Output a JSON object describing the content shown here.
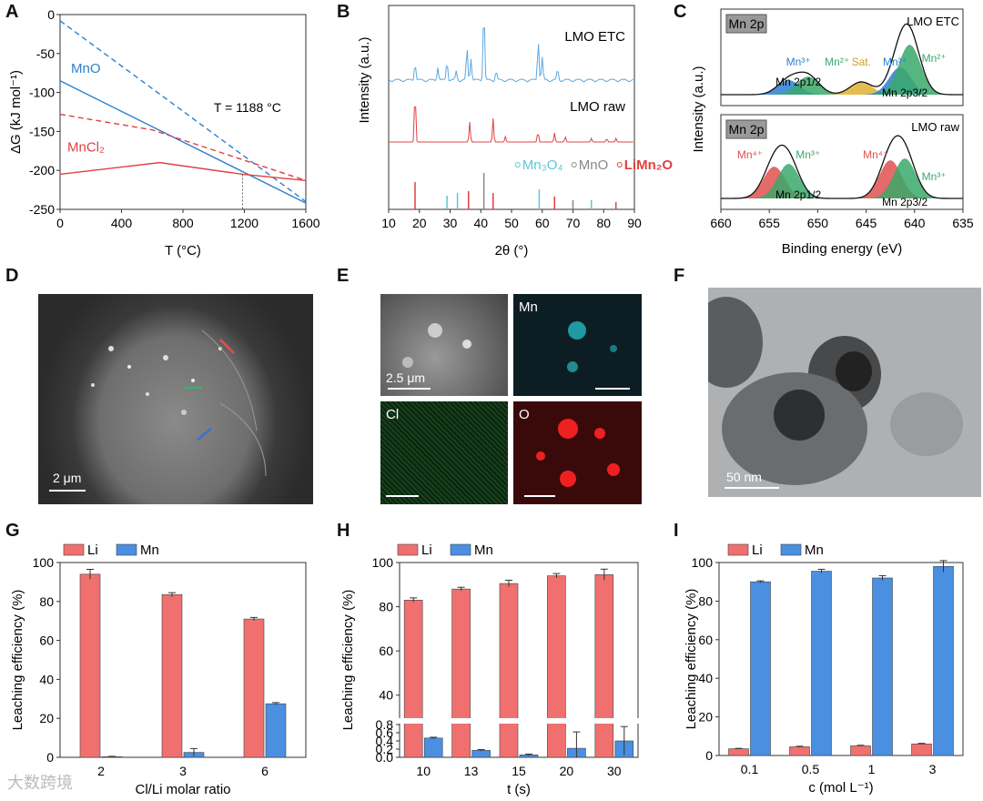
{
  "panels": {
    "A": {
      "label": "A"
    },
    "B": {
      "label": "B"
    },
    "C": {
      "label": "C"
    },
    "D": {
      "label": "D",
      "scale": "2 μm"
    },
    "E": {
      "label": "E",
      "scale": "2.5 μm",
      "maps": [
        "Mn",
        "Cl",
        "O"
      ]
    },
    "F": {
      "label": "F",
      "scale": "50 nm"
    },
    "G": {
      "label": "G"
    },
    "H": {
      "label": "H"
    },
    "I": {
      "label": "I"
    }
  },
  "watermark": "大数跨境",
  "colors": {
    "li": "#f07070",
    "mn": "#4a8fe0",
    "blue": "#2d7fcf",
    "red": "#e04040",
    "grid_dark": "#333333"
  },
  "chart_data": [
    {
      "id": "A",
      "type": "line",
      "xlabel": "T (°C)",
      "ylabel": "ΔG (kJ mol⁻¹)",
      "xlim": [
        0,
        1600
      ],
      "ylim": [
        -250,
        0
      ],
      "xticks": [
        0,
        400,
        800,
        1200,
        1600
      ],
      "yticks": [
        0,
        -50,
        -100,
        -150,
        -200,
        -250
      ],
      "annotation": "T = 1188 °C",
      "vline_x": 1188,
      "labels": [
        "MnO",
        "MnCl₂"
      ],
      "series": [
        {
          "name": "MnO solid",
          "x": [
            0,
            1600
          ],
          "y": [
            -85,
            -242
          ]
        },
        {
          "name": "MnO dashed",
          "x": [
            0,
            1600
          ],
          "y": [
            -8,
            -240
          ]
        },
        {
          "name": "MnCl₂ dashed",
          "x": [
            0,
            600,
            1600
          ],
          "y": [
            -128,
            -148,
            -213
          ]
        },
        {
          "name": "MnCl₂ solid",
          "x": [
            0,
            650,
            1188,
            1600
          ],
          "y": [
            -205,
            -190,
            -205,
            -213
          ]
        }
      ]
    },
    {
      "id": "B",
      "type": "line",
      "xlabel": "2θ (°)",
      "ylabel": "Intensity (a.u.)",
      "xlim": [
        10,
        90
      ],
      "xticks": [
        10,
        20,
        30,
        40,
        50,
        60,
        70,
        80,
        90
      ],
      "traces": [
        "LMO ETC",
        "LMO raw"
      ],
      "legend": [
        {
          "text": "Mn₃O₄",
          "color": "#5bc8d8"
        },
        {
          "text": "MnO",
          "color": "#888888"
        },
        {
          "text": "LiMn₂O₄",
          "color": "#e04040"
        }
      ]
    },
    {
      "id": "C",
      "type": "line",
      "xlabel": "Binding energy (eV)",
      "ylabel": "Intensity (a.u.)",
      "xlim": [
        660,
        635
      ],
      "xticks": [
        660,
        655,
        650,
        645,
        640,
        635
      ],
      "top": {
        "title": "Mn 2p",
        "sample": "LMO ETC",
        "peaks": [
          "Mn³⁺",
          "Mn²⁺",
          "Sat.",
          "Mn³⁺",
          "Mn²⁺"
        ],
        "orbitals": [
          "Mn 2p1/2",
          "Mn 2p3/2"
        ]
      },
      "bottom": {
        "title": "Mn 2p",
        "sample": "LMO raw",
        "peaks": [
          "Mn⁴⁺",
          "Mn³⁺",
          "Mn⁴⁺",
          "Mn³⁺"
        ],
        "orbitals": [
          "Mn 2p1/2",
          "Mn 2p3/2"
        ]
      }
    },
    {
      "id": "G",
      "type": "bar",
      "xlabel": "Cl/Li molar ratio",
      "ylabel": "Leaching efficiency (%)",
      "ylim": [
        0,
        100
      ],
      "yticks": [
        0,
        20,
        40,
        60,
        80,
        100
      ],
      "categories": [
        "2",
        "3",
        "6"
      ],
      "series": [
        {
          "name": "Li",
          "values": [
            94,
            83.5,
            71
          ],
          "errors": [
            2.5,
            1,
            0.8
          ]
        },
        {
          "name": "Mn",
          "values": [
            0.3,
            2.5,
            27.5
          ],
          "errors": [
            0.2,
            2,
            0.6
          ]
        }
      ]
    },
    {
      "id": "H",
      "type": "bar",
      "xlabel": "t (s)",
      "ylabel": "Leaching efficiency (%)",
      "broken_axis": {
        "lower": [
          0,
          0.8
        ],
        "upper": [
          30,
          100
        ]
      },
      "yticks_upper": [
        40,
        60,
        80,
        100
      ],
      "yticks_lower": [
        0.0,
        0.2,
        0.4,
        0.6,
        0.8
      ],
      "categories": [
        "10",
        "13",
        "15",
        "20",
        "30"
      ],
      "series": [
        {
          "name": "Li",
          "values": [
            83,
            88,
            90.5,
            94,
            94.5
          ],
          "errors": [
            1,
            0.8,
            1.5,
            1,
            2.5
          ]
        },
        {
          "name": "Mn",
          "values": [
            0.47,
            0.17,
            0.06,
            0.22,
            0.4
          ],
          "errors": [
            0.02,
            0.02,
            0.02,
            0.4,
            0.35
          ]
        }
      ]
    },
    {
      "id": "I",
      "type": "bar",
      "xlabel": "c (mol L⁻¹)",
      "ylabel": "Leaching efficiency (%)",
      "ylim": [
        0,
        100
      ],
      "yticks": [
        0,
        20,
        40,
        60,
        80,
        100
      ],
      "categories": [
        "0.1",
        "0.5",
        "1",
        "3"
      ],
      "series": [
        {
          "name": "Li",
          "values": [
            3.5,
            4.5,
            5,
            6
          ],
          "errors": [
            0.2,
            0.3,
            0.3,
            0.3
          ]
        },
        {
          "name": "Mn",
          "values": [
            90,
            95.5,
            92,
            98
          ],
          "errors": [
            0.5,
            1,
            1.2,
            3
          ]
        }
      ]
    }
  ]
}
